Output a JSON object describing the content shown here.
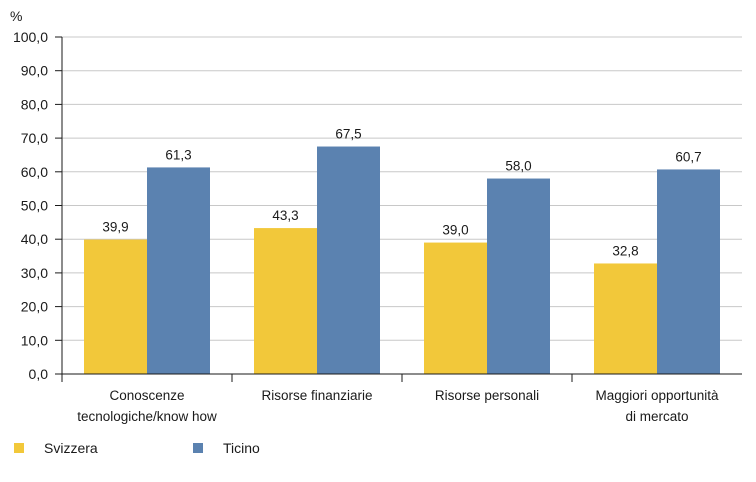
{
  "chart_data": {
    "type": "bar",
    "unit_label": "%",
    "categories": [
      [
        "Conoscenze",
        "tecnologiche/know how"
      ],
      [
        "Risorse finanziarie"
      ],
      [
        "Risorse personali"
      ],
      [
        "Maggiori opportunità",
        "di mercato"
      ]
    ],
    "series": [
      {
        "name": "Svizzera",
        "color": "#f2c83a",
        "values": [
          39.9,
          43.3,
          39.0,
          32.8
        ]
      },
      {
        "name": "Ticino",
        "color": "#5b82b0",
        "values": [
          61.3,
          67.5,
          58.0,
          60.7
        ]
      }
    ],
    "ylim": [
      0,
      100
    ],
    "yticks": [
      "0,0",
      "10,0",
      "20,0",
      "30,0",
      "40,0",
      "50,0",
      "60,0",
      "70,0",
      "80,0",
      "90,0",
      "100,0"
    ],
    "value_labels": [
      [
        "39,9",
        "43,3",
        "39,0",
        "32,8"
      ],
      [
        "61,3",
        "67,5",
        "58,0",
        "60,7"
      ]
    ],
    "grid": true,
    "legend_position": "bottom-left"
  }
}
